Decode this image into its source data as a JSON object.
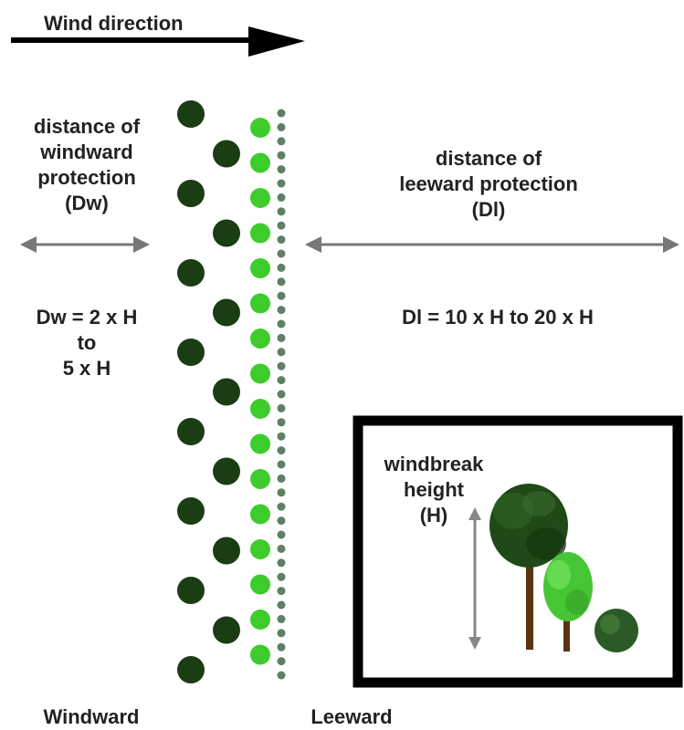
{
  "wind": {
    "label": "Wind direction"
  },
  "windward": {
    "protection_label": "distance of\nwindward\nprotection\n(Dw)",
    "formula": "Dw  =  2 x H\nto\n5 x H",
    "side_label": "Windward"
  },
  "leeward": {
    "protection_label": "distance of\nleeward protection\n(Dl)",
    "formula": "Dl  =  10 x H to 20 x H",
    "side_label": "Leeward"
  },
  "inset": {
    "height_label": "windbreak\nheight\n(H)"
  },
  "colors": {
    "tall_tree": "#1a3d14",
    "medium_tree": "#3dcc2c",
    "shrub": "#5e8064",
    "arrow_gray": "#777777",
    "trunk": "#5a3512"
  },
  "rows": {
    "tall_count": 15,
    "medium_count": 16,
    "shrub_count": 41
  }
}
